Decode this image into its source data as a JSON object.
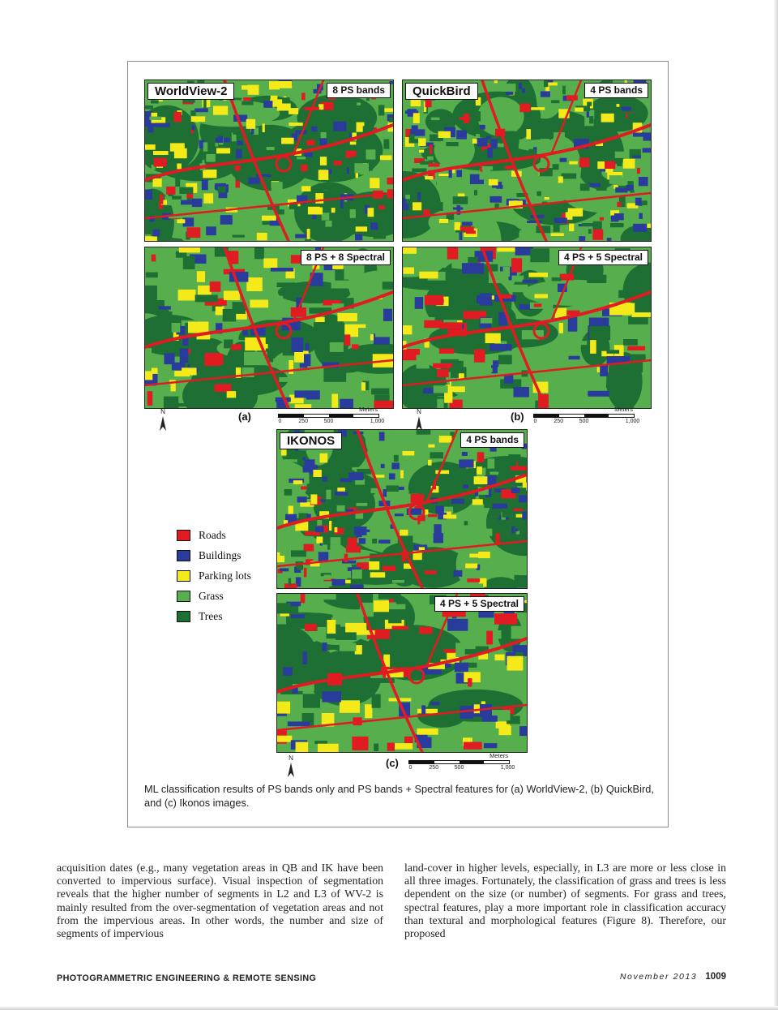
{
  "figure": {
    "panels": {
      "wv2_ps": {
        "sensor": "WorldView-2",
        "bands": "8 PS bands"
      },
      "qb_ps": {
        "sensor": "QuickBird",
        "bands": "4 PS bands"
      },
      "wv2_sp": {
        "bands": "8 PS + 8 Spectral"
      },
      "qb_sp": {
        "bands": "4 PS + 5 Spectral"
      },
      "ik_ps": {
        "sensor": "IKONOS",
        "bands": "4 PS bands"
      },
      "ik_sp": {
        "bands": "4 PS + 5 Spectral"
      }
    },
    "sublabels": {
      "a": "(a)",
      "b": "(b)",
      "c": "(c)"
    },
    "north_label": "N",
    "legend": {
      "items": [
        {
          "label": "Roads",
          "color": "#e11b22"
        },
        {
          "label": "Buildings",
          "color": "#2a3c9b"
        },
        {
          "label": "Parking lots",
          "color": "#f4ea19"
        },
        {
          "label": "Grass",
          "color": "#56ae4c"
        },
        {
          "label": "Trees",
          "color": "#1d6f33"
        }
      ]
    },
    "scalebar": {
      "unit": "Meters",
      "ticks": [
        "0",
        "250",
        "500",
        "1,000"
      ]
    },
    "caption": "ML classification results of PS bands only and PS bands + Spectral features for (a) WorldView-2, (b) QuickBird, and (c) Ikonos images."
  },
  "body": {
    "left": "acquisition dates (e.g., many vegetation areas in QB and IK have been converted to impervious surface). Visual inspection of segmentation reveals that the higher number of segments in L2 and L3 of WV-2 is mainly resulted from the over-segmentation of vegetation areas and not from the impervious areas. In other words, the number and size of segments of impervious",
    "right": "land-cover in higher levels, especially, in L3 are more or less close in all three images. Fortunately, the classification of grass and trees is less dependent on the size (or number) of segments. For grass and trees, spectral features, play a more important role in classification accuracy than textural and morphological features (Figure 8). Therefore, our proposed"
  },
  "footer": {
    "journal": "PHOTOGRAMMETRIC ENGINEERING & REMOTE SENSING",
    "issue": "November 2013",
    "page": "1009"
  }
}
